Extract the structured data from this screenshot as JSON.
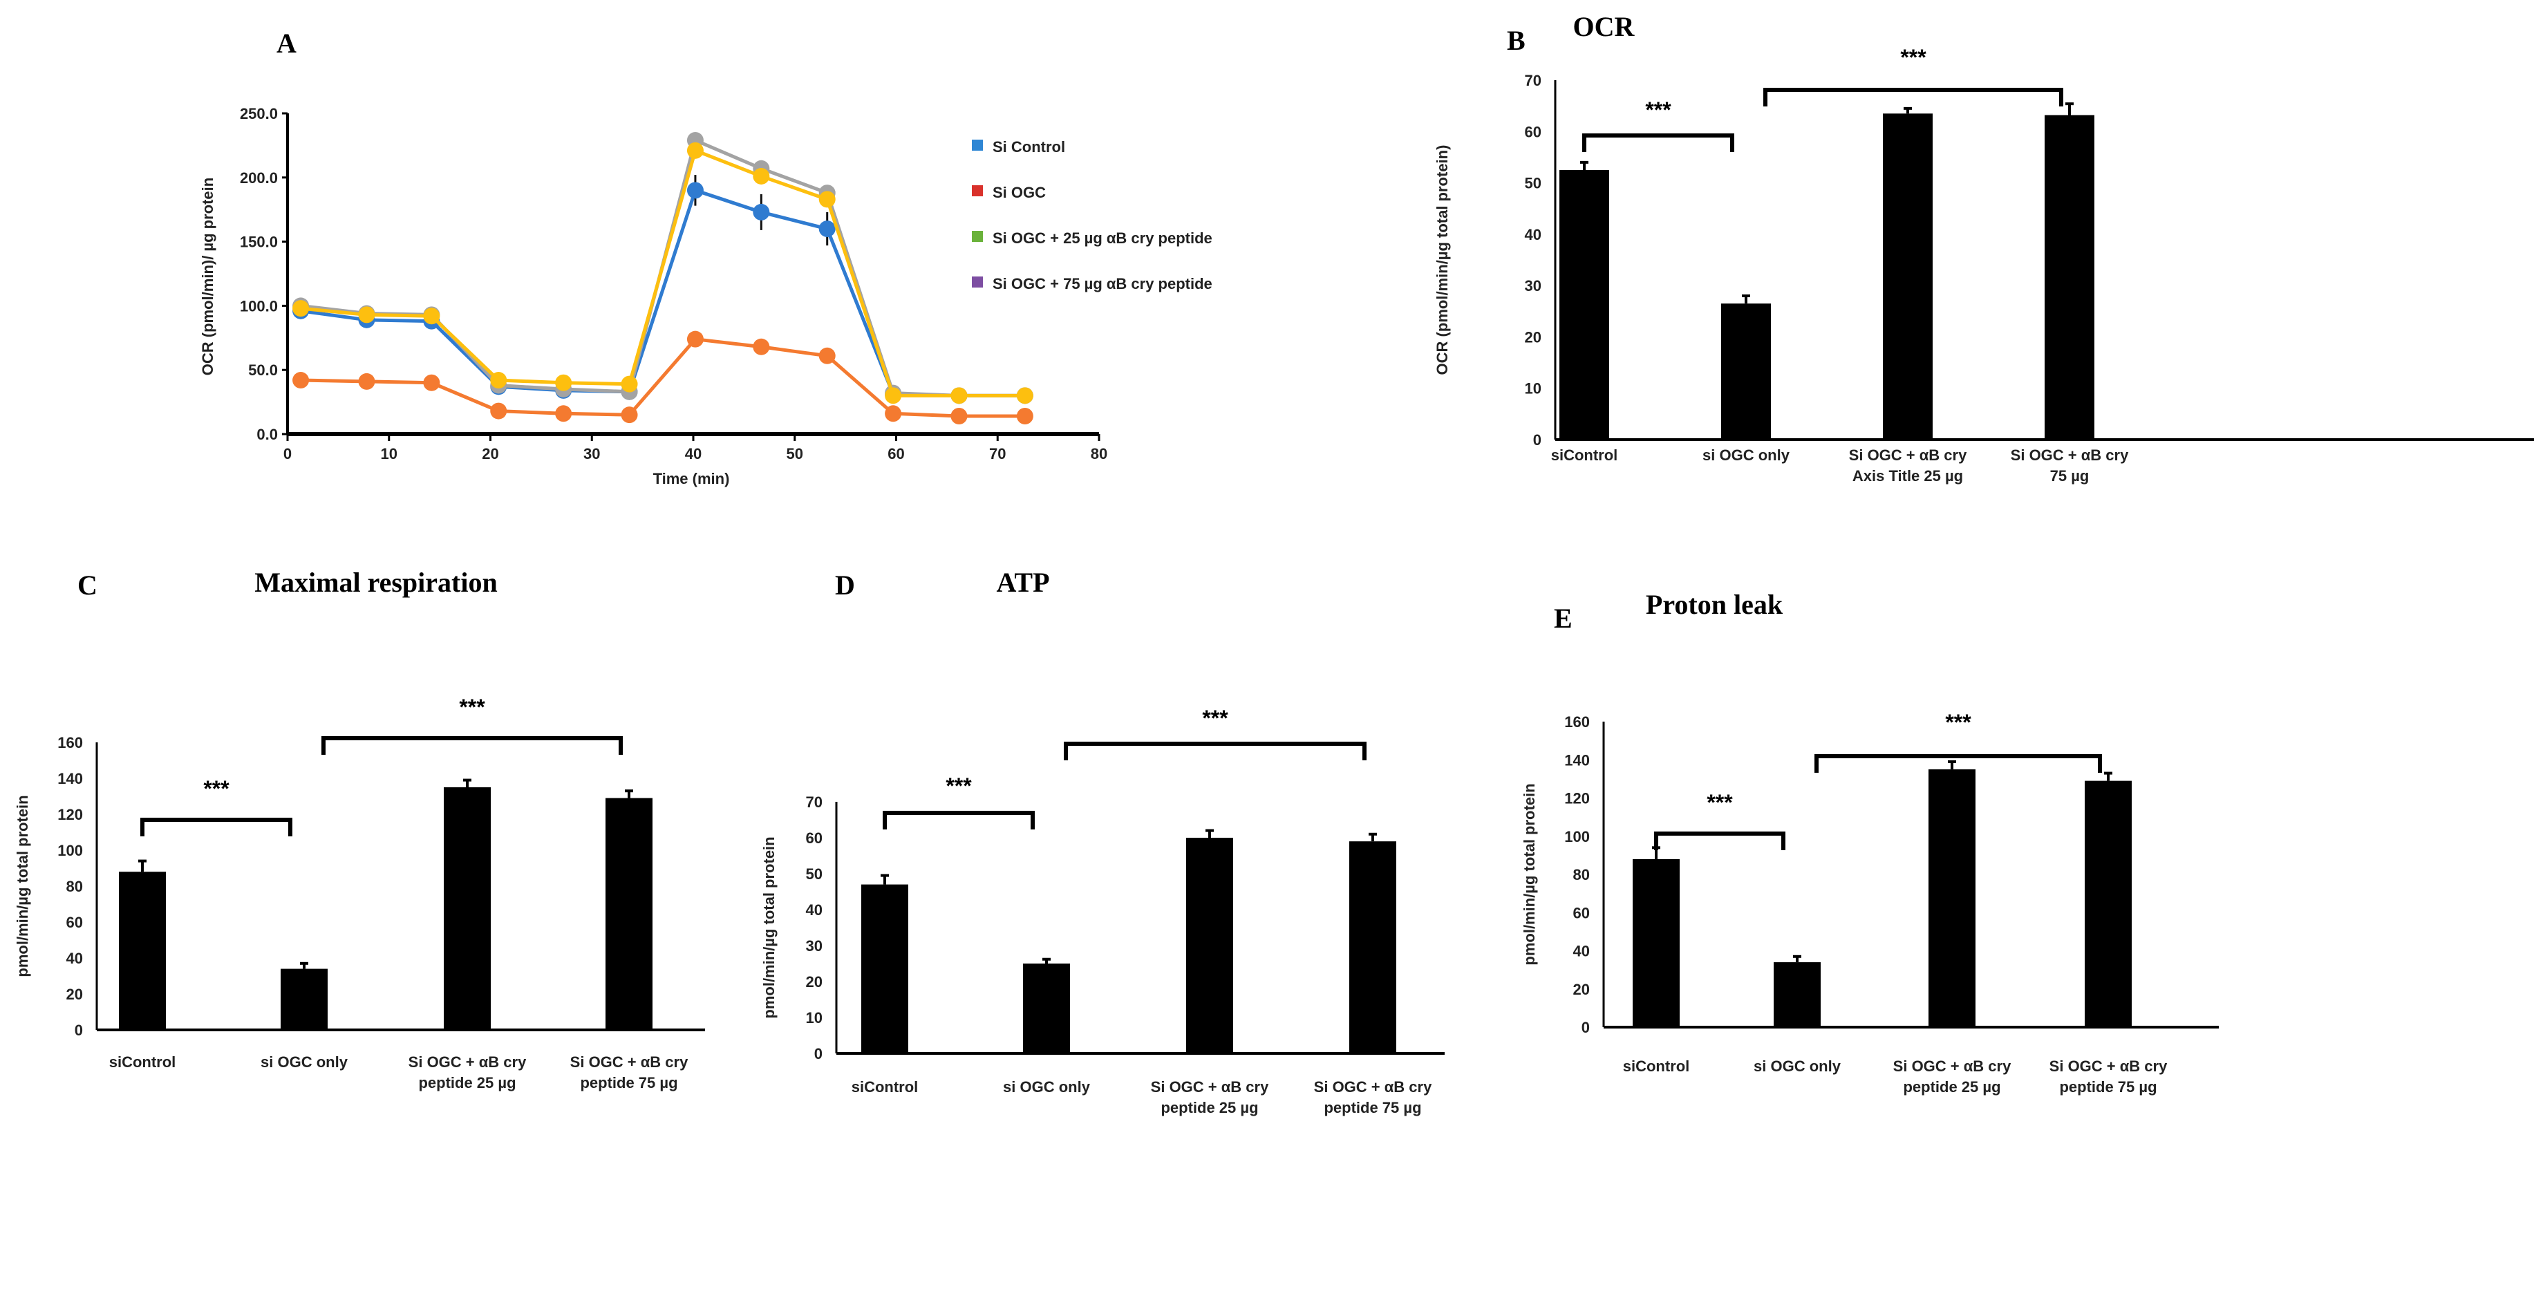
{
  "chart_data": [
    {
      "type": "line",
      "panel_letter": "A",
      "title": "",
      "xlabel": "Time (min)",
      "ylabel": "OCR (pmol/min)/  µg protein",
      "xlim": [
        0,
        80
      ],
      "ylim": [
        0,
        250
      ],
      "xticks": [
        "0",
        "10",
        "20",
        "30",
        "40",
        "50",
        "60",
        "70",
        "80"
      ],
      "yticks": [
        "0.0",
        "50.0",
        "100.0",
        "150.0",
        "200.0",
        "250.0"
      ],
      "legend_position": "top-right",
      "x": [
        1.3,
        7.8,
        14.2,
        20.8,
        27.2,
        33.7,
        40.2,
        46.7,
        53.2,
        59.7,
        66.2,
        72.7
      ],
      "series": [
        {
          "name": "Si Control",
          "legend_color": "#2e86d4",
          "line_color": "#2f7bd0",
          "values": [
            96,
            89,
            88,
            37,
            34,
            33,
            190,
            173,
            160,
            31,
            30,
            30
          ],
          "errors": [
            3,
            3,
            3,
            4,
            4,
            4,
            12,
            14,
            13,
            2,
            2,
            2
          ]
        },
        {
          "name": "Si OGC",
          "legend_color": "#d9312b",
          "line_color": "#f47a30",
          "values": [
            42,
            41,
            40,
            18,
            16,
            15,
            74,
            68,
            61,
            16,
            14,
            14
          ],
          "errors": [
            2,
            2,
            2,
            2,
            2,
            2,
            3,
            3,
            3,
            2,
            2,
            2
          ]
        },
        {
          "name": "Si OGC + 25 µg αB cry peptide",
          "legend_color": "#6ab23a",
          "line_color": "#a3a3a3",
          "values": [
            100,
            94,
            93,
            38,
            35,
            33,
            229,
            207,
            188,
            32,
            30,
            30
          ],
          "errors": [
            3,
            3,
            3,
            5,
            5,
            5,
            6,
            6,
            6,
            2,
            2,
            2
          ]
        },
        {
          "name": "Si OGC + 75 µg αB cry peptide",
          "legend_color": "#7d4ea2",
          "line_color": "#fdbf0f",
          "values": [
            98,
            93,
            92,
            42,
            40,
            39,
            221,
            201,
            183,
            30,
            30,
            30
          ],
          "errors": [
            3,
            3,
            3,
            4,
            4,
            4,
            6,
            6,
            6,
            2,
            2,
            2
          ]
        }
      ]
    },
    {
      "type": "bar",
      "panel_letter": "B",
      "title": "OCR",
      "ylabel": "OCR (pmol/min/µg total protein)",
      "ylim": [
        0,
        70
      ],
      "yticks": [
        "0",
        "10",
        "20",
        "30",
        "40",
        "50",
        "60",
        "70"
      ],
      "categories": [
        [
          "siControl"
        ],
        [
          "si OGC only"
        ],
        [
          "Si OGC + αB cry",
          "Axis Title  25 µg"
        ],
        [
          "Si OGC + αB cry",
          "75 µg"
        ]
      ],
      "values": [
        52.5,
        26.5,
        63.5,
        63.2
      ],
      "errors": [
        1.5,
        1.5,
        1.0,
        2.2
      ],
      "significance": [
        {
          "label": "***",
          "from": 0,
          "to": 1
        },
        {
          "label": "***",
          "from": 1,
          "to": 3
        }
      ]
    },
    {
      "type": "bar",
      "panel_letter": "C",
      "title": "Maximal  respiration",
      "ylabel": "pmol/min/µg total protein",
      "ylim": [
        0,
        160
      ],
      "yticks": [
        "0",
        "20",
        "40",
        "60",
        "80",
        "100",
        "120",
        "140",
        "160"
      ],
      "categories": [
        [
          "siControl"
        ],
        [
          "si OGC only"
        ],
        [
          "Si OGC + αB cry",
          "peptide 25 µg"
        ],
        [
          "Si OGC + αB cry",
          "peptide  75 µg"
        ]
      ],
      "values": [
        88,
        34,
        135,
        129
      ],
      "errors": [
        6,
        3,
        4,
        4
      ],
      "significance": [
        {
          "label": "***",
          "from": 0,
          "to": 1
        },
        {
          "label": "***",
          "from": 1,
          "to": 3
        }
      ]
    },
    {
      "type": "bar",
      "panel_letter": "D",
      "title": "ATP",
      "ylabel": "pmol/min/µg  total protein",
      "ylim": [
        0,
        70
      ],
      "yticks": [
        "0",
        "10",
        "20",
        "30",
        "40",
        "50",
        "60",
        "70"
      ],
      "categories": [
        [
          "siControl"
        ],
        [
          "si OGC only"
        ],
        [
          "Si OGC + αB cry",
          "peptide 25 µg"
        ],
        [
          "Si OGC + αB cry",
          "peptide  75 µg"
        ]
      ],
      "values": [
        47,
        25,
        60,
        59
      ],
      "errors": [
        2.5,
        1.2,
        2,
        2
      ],
      "significance": [
        {
          "label": "***",
          "from": 0,
          "to": 1
        },
        {
          "label": "***",
          "from": 1,
          "to": 3
        }
      ]
    },
    {
      "type": "bar",
      "panel_letter": "E",
      "title": "Proton leak",
      "ylabel": "pmol/min/µg total protein",
      "ylim": [
        0,
        160
      ],
      "yticks": [
        "0",
        "20",
        "40",
        "60",
        "80",
        "100",
        "120",
        "140",
        "160"
      ],
      "categories": [
        [
          "siControl"
        ],
        [
          "si OGC only"
        ],
        [
          "Si OGC + αB cry",
          "peptide 25 µg"
        ],
        [
          "Si OGC + αB cry",
          "peptide  75 µg"
        ]
      ],
      "values": [
        88,
        34,
        135,
        129
      ],
      "errors": [
        6,
        3,
        4,
        4
      ],
      "significance": [
        {
          "label": "***",
          "from": 0,
          "to": 1
        },
        {
          "label": "***",
          "from": 1,
          "to": 3
        }
      ]
    }
  ]
}
